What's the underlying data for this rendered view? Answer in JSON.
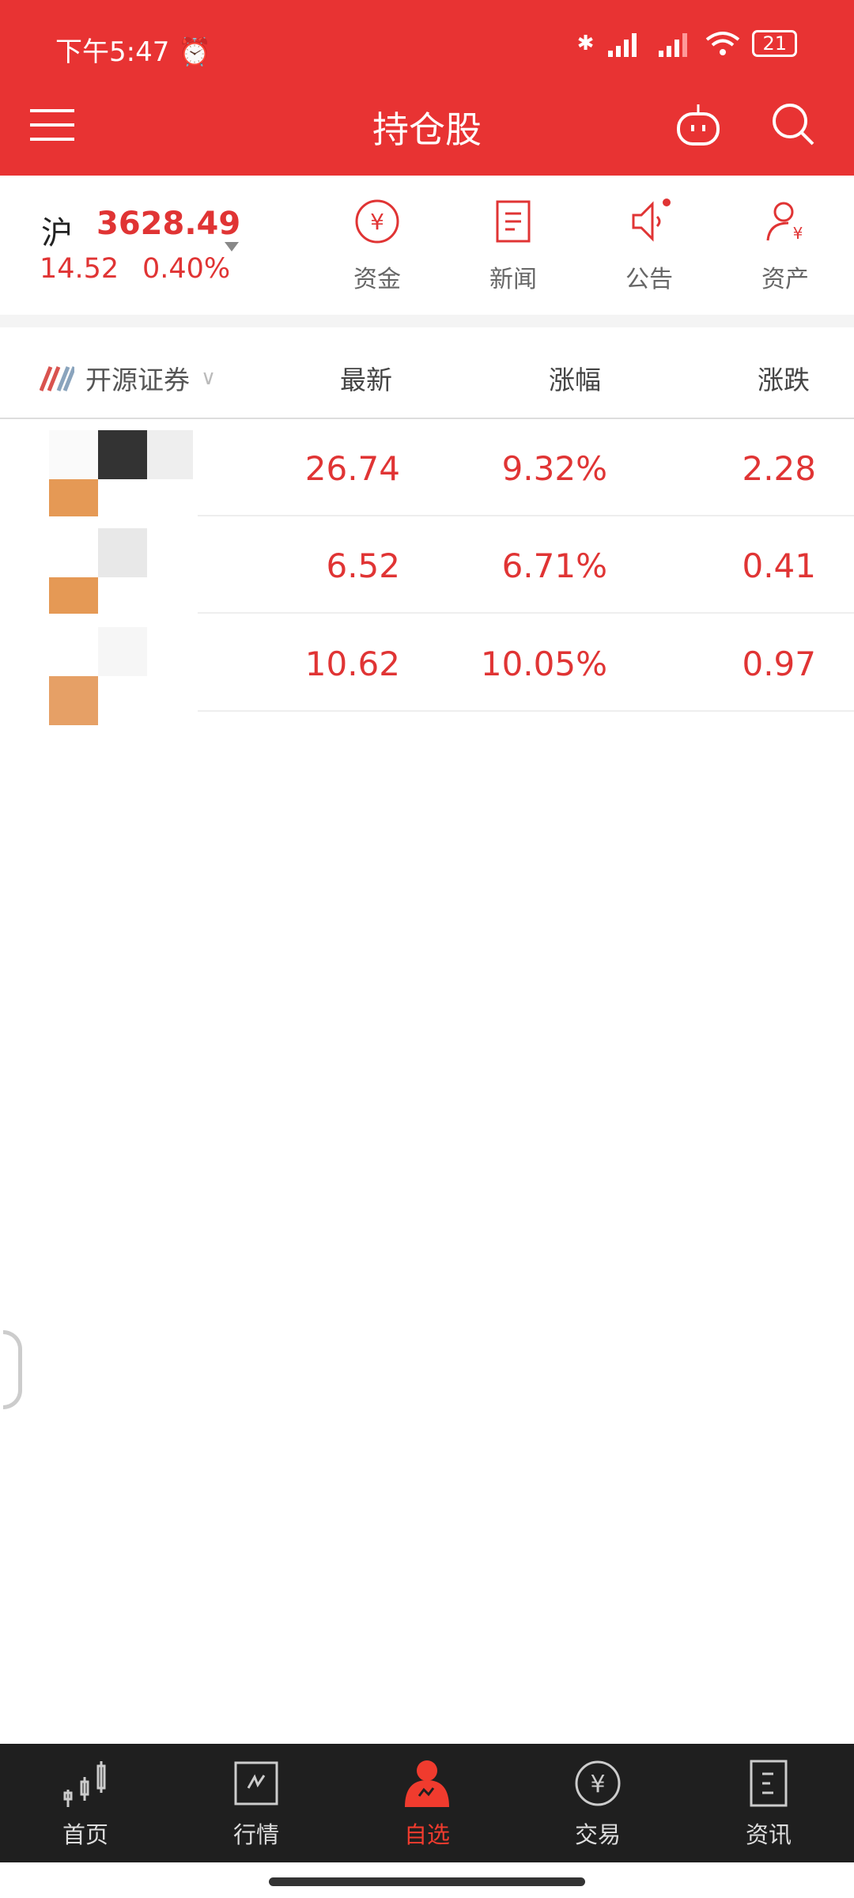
{
  "status_bar": {
    "time": "下午5:47",
    "battery": "21",
    "icons": [
      "alarm-icon",
      "bluetooth-icon",
      "signal-hd-icon",
      "signal-icon",
      "wifi-icon",
      "battery-icon"
    ]
  },
  "header": {
    "title": "持仓股",
    "icons": [
      "menu-icon",
      "robot-icon",
      "search-icon"
    ]
  },
  "index": {
    "name": "沪",
    "value": "3628.49",
    "change": "14.52",
    "percent": "0.40%"
  },
  "quick_actions": [
    {
      "label": "资金",
      "icon": "yuan-circle-icon"
    },
    {
      "label": "新闻",
      "icon": "news-icon"
    },
    {
      "label": "公告",
      "icon": "speaker-icon"
    },
    {
      "label": "资产",
      "icon": "user-yuan-icon"
    }
  ],
  "table": {
    "broker": "开源证券",
    "columns": [
      "最新",
      "涨幅",
      "涨跌"
    ],
    "rows": [
      {
        "latest": "26.74",
        "pct": "9.32%",
        "chg": "2.28"
      },
      {
        "latest": "6.52",
        "pct": "6.71%",
        "chg": "0.41"
      },
      {
        "latest": "10.62",
        "pct": "10.05%",
        "chg": "0.97"
      }
    ]
  },
  "nav": [
    {
      "label": "首页",
      "icon": "candlestick-icon"
    },
    {
      "label": "行情",
      "icon": "chart-icon"
    },
    {
      "label": "自选",
      "icon": "user-chart-icon",
      "active": true
    },
    {
      "label": "交易",
      "icon": "yuan-circle-icon"
    },
    {
      "label": "资讯",
      "icon": "document-icon"
    }
  ],
  "colors": {
    "brand": "#e83333",
    "up": "#e03434",
    "nav_bg": "#1f1f1f"
  }
}
